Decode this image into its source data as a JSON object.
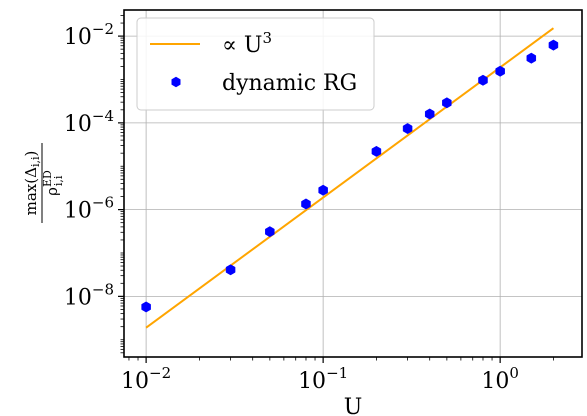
{
  "chart_data": {
    "type": "scatter",
    "xscale": "log",
    "yscale": "log",
    "xlim": [
      0.0075,
      2.9
    ],
    "ylim": [
      4e-10,
      0.04
    ],
    "xlabel": "U",
    "ylabel": {
      "numerator": "max(Δ",
      "numerator_sub": "i,i",
      "numerator_close": ")",
      "denominator": "ρ",
      "denominator_sup": "ED",
      "denominator_sub": "i,i"
    },
    "grid": true,
    "legend_position": "top-left",
    "x_ticks": [
      {
        "value": 0.01,
        "base": "10",
        "exp": "−2"
      },
      {
        "value": 0.1,
        "base": "10",
        "exp": "−1"
      },
      {
        "value": 1,
        "base": "10",
        "exp": "0"
      }
    ],
    "y_ticks": [
      {
        "value": 1e-08,
        "base": "10",
        "exp": "−8"
      },
      {
        "value": 1e-06,
        "base": "10",
        "exp": "−6"
      },
      {
        "value": 0.0001,
        "base": "10",
        "exp": "−4"
      },
      {
        "value": 0.01,
        "base": "10",
        "exp": "−2"
      }
    ],
    "series": [
      {
        "name": "∝ U",
        "name_sup": "3",
        "kind": "line",
        "color": "#ffa500",
        "x": [
          0.01,
          2.0
        ],
        "y": [
          1.9e-09,
          0.0152
        ]
      },
      {
        "name": "dynamic RG",
        "kind": "scatter",
        "color": "#0000ff",
        "x": [
          0.01,
          0.03,
          0.05,
          0.08,
          0.1,
          0.2,
          0.3,
          0.4,
          0.5,
          0.8,
          1.0,
          1.5,
          2.0
        ],
        "y": [
          5.7e-09,
          4.1e-08,
          3.1e-07,
          1.35e-06,
          2.8e-06,
          2.2e-05,
          7.4e-05,
          0.00016,
          0.00029,
          0.00096,
          0.00155,
          0.0031,
          0.0062
        ]
      }
    ]
  }
}
